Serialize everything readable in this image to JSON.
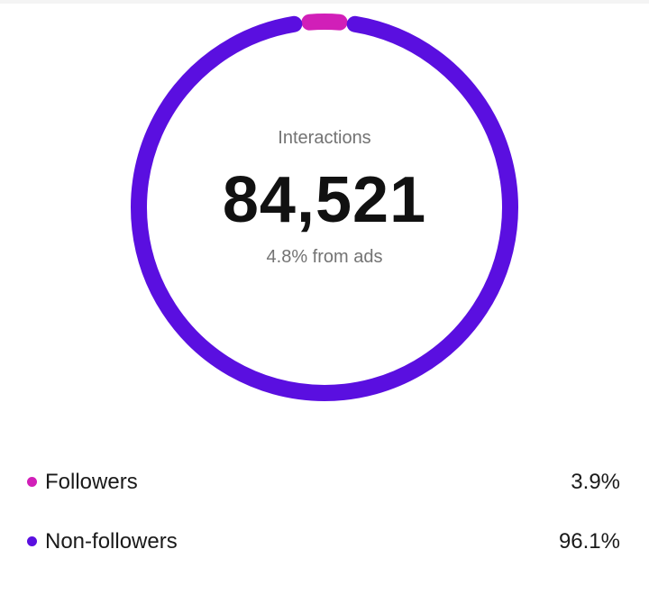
{
  "summary": {
    "label": "Interactions",
    "total": "84,521",
    "ads_note": "4.8% from ads"
  },
  "chart_data": {
    "type": "pie",
    "categories": [
      "Followers",
      "Non-followers"
    ],
    "values": [
      3.9,
      96.1
    ],
    "colors": [
      "#d11fb8",
      "#5a0fe0"
    ]
  },
  "legend": {
    "items": [
      {
        "label": "Followers",
        "value": "3.9%",
        "color": "#d11fb8"
      },
      {
        "label": "Non-followers",
        "value": "96.1%",
        "color": "#5a0fe0"
      }
    ]
  }
}
